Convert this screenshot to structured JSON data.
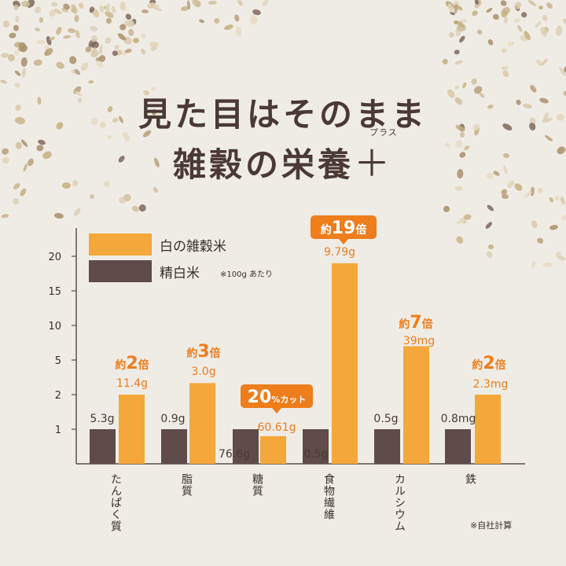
{
  "title": {
    "line1": "見た目はそのまま",
    "line2_main": "雑穀の栄養",
    "line2_plus": "＋",
    "plus_ruby": "プラス"
  },
  "legend": {
    "items": [
      {
        "label": "白の雑穀米",
        "color": "#f4a73b"
      },
      {
        "label": "精白米",
        "color": "#5e4b4a"
      }
    ],
    "note": "※100g あたり"
  },
  "footnote": "※自社計算",
  "colors": {
    "accent": "#ee7d1c",
    "zakkoku": "#f4a73b",
    "hakumai": "#5e4b4a",
    "axis": "#3a2f2a"
  },
  "chart_data": {
    "type": "bar",
    "yaxis_ticks": [
      "1",
      "2",
      "5",
      "10",
      "15",
      "20"
    ],
    "y_ticks": [
      1,
      2,
      5,
      10,
      15,
      20
    ],
    "categories": [
      "たんぱく質",
      "脂質",
      "糖質",
      "食物繊維",
      "カルシウム",
      "鉄"
    ],
    "series": [
      {
        "name": "精白米",
        "values": [
          1,
          1,
          1,
          1,
          1,
          1
        ],
        "labels": [
          "5.3g",
          "0.9g",
          "76.6g",
          "0.5g",
          "0.5g",
          "0.8mg"
        ]
      },
      {
        "name": "白の雑穀米",
        "values": [
          2,
          3,
          0.8,
          19,
          7,
          2
        ],
        "labels": [
          "11.4g",
          "3.0g",
          "60.61g",
          "9.79g",
          "39mg",
          "2.3mg"
        ]
      }
    ],
    "callouts": [
      {
        "pre": "約",
        "num": "2",
        "post": "倍",
        "type": "text"
      },
      {
        "pre": "約",
        "num": "3",
        "post": "倍",
        "type": "text"
      },
      {
        "pre": "",
        "num": "20",
        "post": "%カット",
        "type": "box"
      },
      {
        "pre": "約",
        "num": "19",
        "post": "倍",
        "type": "box"
      },
      {
        "pre": "約",
        "num": "7",
        "post": "倍",
        "type": "text"
      },
      {
        "pre": "約",
        "num": "2",
        "post": "倍",
        "type": "text"
      }
    ]
  }
}
